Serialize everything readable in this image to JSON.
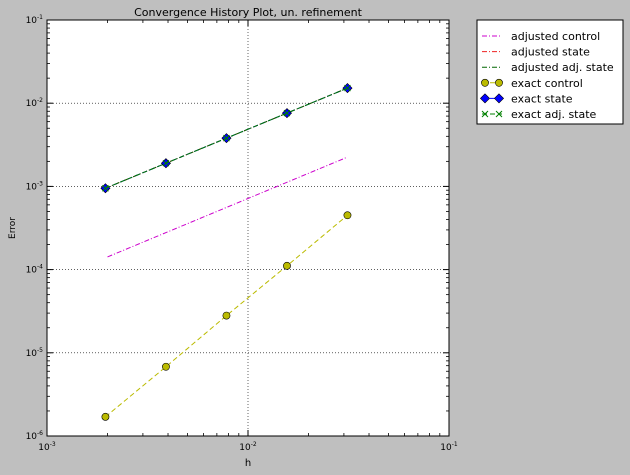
{
  "chart_data": {
    "type": "line",
    "title": "Convergence History Plot, un. refinement",
    "xlabel": "h",
    "ylabel": "Error",
    "xscale": "log",
    "yscale": "log",
    "xlim": [
      0.001,
      0.1
    ],
    "ylim": [
      1e-06,
      0.1
    ],
    "grid": true,
    "legend_position": "outside-top-right",
    "x_ticks": [
      {
        "value": 0.001,
        "base": "10",
        "exp": "-3"
      },
      {
        "value": 0.01,
        "base": "10",
        "exp": "-2"
      },
      {
        "value": 0.1,
        "base": "10",
        "exp": "-1"
      }
    ],
    "y_ticks": [
      {
        "value": 1e-06,
        "base": "10",
        "exp": "-6"
      },
      {
        "value": 1e-05,
        "base": "10",
        "exp": "-5"
      },
      {
        "value": 0.0001,
        "base": "10",
        "exp": "-4"
      },
      {
        "value": 0.001,
        "base": "10",
        "exp": "-3"
      },
      {
        "value": 0.01,
        "base": "10",
        "exp": "-2"
      },
      {
        "value": 0.1,
        "base": "10",
        "exp": "-1"
      }
    ],
    "series": [
      {
        "name": "adjusted control",
        "color": "#cc00cc",
        "line": "dashdot",
        "marker": "none",
        "x": [
          0.002,
          0.03125
        ],
        "y": [
          0.000142,
          0.00225
        ]
      },
      {
        "name": "adjusted state",
        "color": "#ee2222",
        "line": "dashdot",
        "marker": "none",
        "x": [
          0.001953,
          0.003906,
          0.007813,
          0.015625,
          0.03125
        ],
        "y": [
          0.00095,
          0.0019,
          0.0038,
          0.0076,
          0.0152
        ]
      },
      {
        "name": "adjusted adj. state",
        "color": "#006600",
        "line": "dashdot",
        "marker": "none",
        "x": [
          0.001953,
          0.003906,
          0.007813,
          0.015625,
          0.03125
        ],
        "y": [
          0.00095,
          0.0019,
          0.0038,
          0.0076,
          0.0152
        ]
      },
      {
        "name": "exact control",
        "color": "#bbbb00",
        "line": "dashed",
        "marker": "circle",
        "x": [
          0.001953,
          0.003906,
          0.007813,
          0.015625,
          0.03125
        ],
        "y": [
          1.7e-06,
          6.8e-06,
          2.8e-05,
          0.000111,
          0.00045
        ]
      },
      {
        "name": "exact state",
        "color": "#0000ff",
        "line": "dashed",
        "marker": "diamond",
        "x": [
          0.001953,
          0.003906,
          0.007813,
          0.015625,
          0.03125
        ],
        "y": [
          0.00095,
          0.0019,
          0.0038,
          0.0076,
          0.0152
        ]
      },
      {
        "name": "exact adj. state",
        "color": "#008000",
        "line": "dashed",
        "marker": "x",
        "x": [
          0.001953,
          0.003906,
          0.007813,
          0.015625,
          0.03125
        ],
        "y": [
          0.00095,
          0.0019,
          0.0038,
          0.0076,
          0.0152
        ]
      }
    ]
  }
}
